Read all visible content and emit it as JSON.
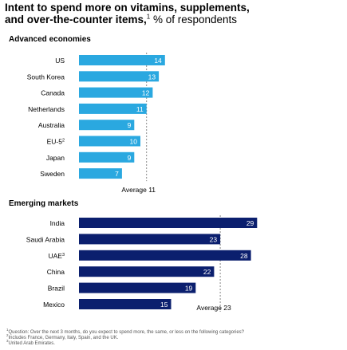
{
  "title": {
    "line1": "Intent to spend more on vitamins, supplements,",
    "line2": "and over-the-counter items,",
    "sup": "1",
    "unit": " % of respondents"
  },
  "colors": {
    "advanced": "#2aa8e0",
    "emerging": "#0b1f6e",
    "bar_label": "#ffffff",
    "average_line": "#888888"
  },
  "chart_data": [
    {
      "type": "bar",
      "orientation": "horizontal",
      "title": "Advanced economies",
      "categories": [
        "US",
        "South Korea",
        "Canada",
        "Netherlands",
        "Australia",
        "EU-5",
        "Japan",
        "Sweden"
      ],
      "values": [
        14,
        13,
        12,
        11,
        9,
        10,
        9,
        7
      ],
      "category_sups": [
        "",
        "",
        "",
        "",
        "",
        "2",
        "",
        ""
      ],
      "average_label": "Average 11",
      "average_value": 11
    },
    {
      "type": "bar",
      "orientation": "horizontal",
      "title": "Emerging markets",
      "categories": [
        "India",
        "Saudi Arabia",
        "UAE",
        "China",
        "Brazil",
        "Mexico"
      ],
      "values": [
        29,
        23,
        28,
        22,
        19,
        15
      ],
      "category_sups": [
        "",
        "",
        "3",
        "",
        "",
        ""
      ],
      "average_label": "Average 23",
      "average_value": 23
    }
  ],
  "footnotes": [
    {
      "sup": "1",
      "text": "Question: Over the next 3 months, do you expect to spend more, the same, or less on the following categories?"
    },
    {
      "sup": "2",
      "text": "Includes France, Germany, Italy, Spain, and the UK."
    },
    {
      "sup": "3",
      "text": "United Arab Emirates."
    }
  ]
}
